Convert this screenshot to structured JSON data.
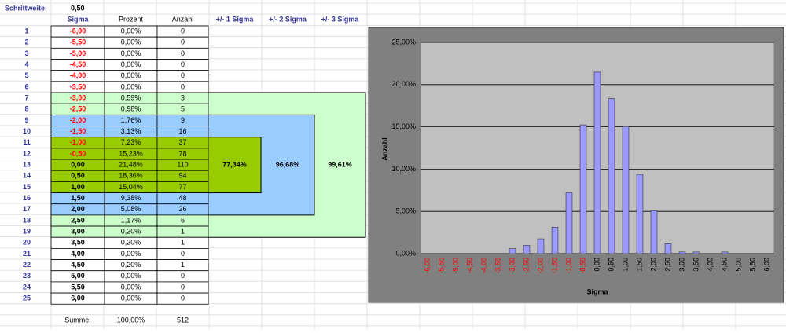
{
  "header": {
    "label": "Schrittweite:",
    "value": "0,50"
  },
  "columns": [
    "Sigma",
    "Prozent",
    "Anzahl",
    "+/- 1 Sigma",
    "+/- 2 Sigma",
    "+/- 3 Sigma"
  ],
  "rows": [
    [
      "1",
      "-6,00",
      "0,00%",
      "0"
    ],
    [
      "2",
      "-5,50",
      "0,00%",
      "0"
    ],
    [
      "3",
      "-5,00",
      "0,00%",
      "0"
    ],
    [
      "4",
      "-4,50",
      "0,00%",
      "0"
    ],
    [
      "5",
      "-4,00",
      "0,00%",
      "0"
    ],
    [
      "6",
      "-3,50",
      "0,00%",
      "0"
    ],
    [
      "7",
      "-3,00",
      "0,59%",
      "3"
    ],
    [
      "8",
      "-2,50",
      "0,98%",
      "5"
    ],
    [
      "9",
      "-2,00",
      "1,76%",
      "9"
    ],
    [
      "10",
      "-1,50",
      "3,13%",
      "16"
    ],
    [
      "11",
      "-1,00",
      "7,23%",
      "37"
    ],
    [
      "12",
      "-0,50",
      "15,23%",
      "78"
    ],
    [
      "13",
      "0,00",
      "21,48%",
      "110"
    ],
    [
      "14",
      "0,50",
      "18,36%",
      "94"
    ],
    [
      "15",
      "1,00",
      "15,04%",
      "77"
    ],
    [
      "16",
      "1,50",
      "9,38%",
      "48"
    ],
    [
      "17",
      "2,00",
      "5,08%",
      "26"
    ],
    [
      "18",
      "2,50",
      "1,17%",
      "6"
    ],
    [
      "19",
      "3,00",
      "0,20%",
      "1"
    ],
    [
      "20",
      "3,50",
      "0,20%",
      "1"
    ],
    [
      "21",
      "4,00",
      "0,00%",
      "0"
    ],
    [
      "22",
      "4,50",
      "0,20%",
      "1"
    ],
    [
      "23",
      "5,00",
      "0,00%",
      "0"
    ],
    [
      "24",
      "5,50",
      "0,00%",
      "0"
    ],
    [
      "25",
      "6,00",
      "0,00%",
      "0"
    ]
  ],
  "ranges": [
    "77,34%",
    "96,68%",
    "99,61%"
  ],
  "footer": [
    "Summe:",
    "100,00%",
    "512"
  ],
  "chart_data": {
    "type": "bar",
    "x_label": "Sigma",
    "y_label": "Anzahl",
    "color": "#9999ff",
    "categories": [
      "-6,00",
      "-5,50",
      "-5,00",
      "-4,50",
      "-4,00",
      "-3,50",
      "-3,00",
      "-2,50",
      "-2,00",
      "-1,50",
      "-1,00",
      "-0,50",
      "0,00",
      "0,50",
      "1,00",
      "1,50",
      "2,00",
      "2,50",
      "3,00",
      "3,50",
      "4,00",
      "4,50",
      "5,00",
      "5,50",
      "6,00"
    ],
    "values": [
      0,
      0,
      0,
      0,
      0,
      0,
      0.59,
      0.98,
      1.76,
      3.13,
      7.23,
      15.23,
      21.48,
      18.36,
      15.04,
      9.38,
      5.08,
      1.17,
      0.2,
      0.2,
      0,
      0.2,
      0,
      0,
      0
    ],
    "ylim": [
      0,
      25
    ],
    "yticks": [
      {
        "value": 0,
        "label": "0,00%"
      },
      {
        "value": 5,
        "label": "5,00%"
      },
      {
        "value": 10,
        "label": "10,00%"
      },
      {
        "value": 15,
        "label": "15,00%"
      },
      {
        "value": 20,
        "label": "20,00%"
      },
      {
        "value": 25,
        "label": "25,00%"
      }
    ],
    "grid": true
  }
}
